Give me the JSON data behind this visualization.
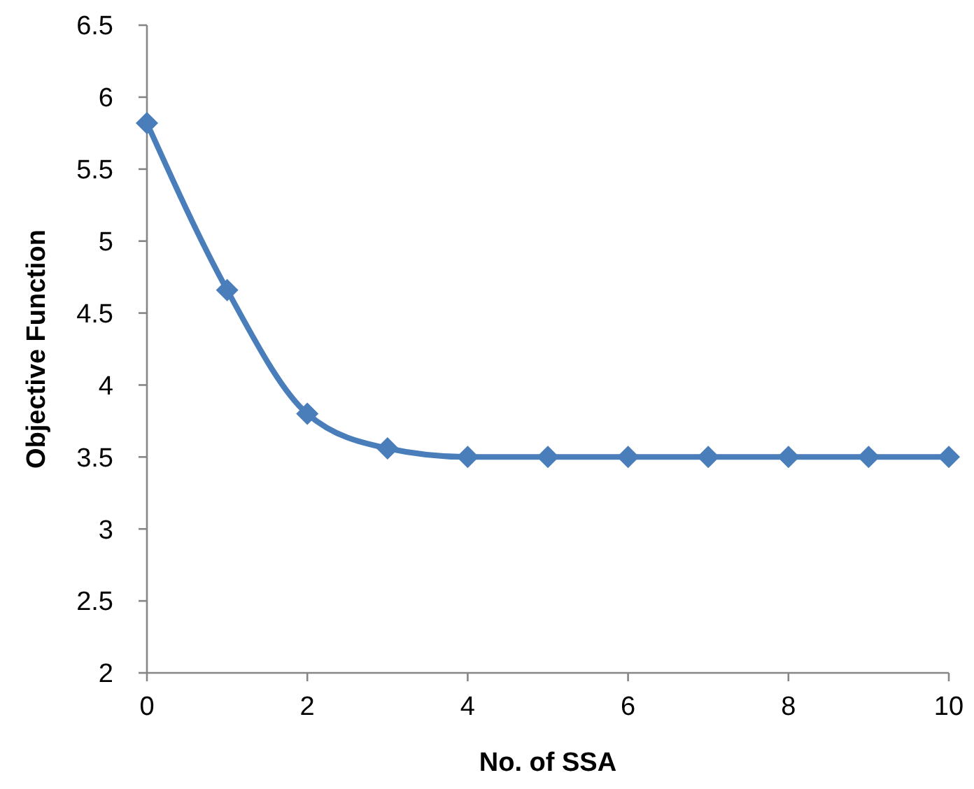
{
  "chart_data": {
    "type": "line",
    "xlabel": "No. of SSA",
    "ylabel": "Objective Function",
    "x": [
      0,
      1,
      2,
      3,
      4,
      5,
      6,
      7,
      8,
      9,
      10
    ],
    "series": [
      {
        "color": "#4a7ebb",
        "values": [
          5.82,
          4.66,
          3.8,
          3.56,
          3.5,
          3.5,
          3.5,
          3.5,
          3.5,
          3.5,
          3.5
        ]
      }
    ],
    "xlim": [
      0,
      10
    ],
    "xticks": [
      0,
      2,
      4,
      6,
      8,
      10
    ],
    "ylim": [
      2,
      6.5
    ],
    "yticks": [
      2,
      2.5,
      3,
      3.5,
      4,
      4.5,
      5,
      5.5,
      6,
      6.5
    ],
    "grid": false,
    "marker": "diamond",
    "line_style": "solid"
  }
}
